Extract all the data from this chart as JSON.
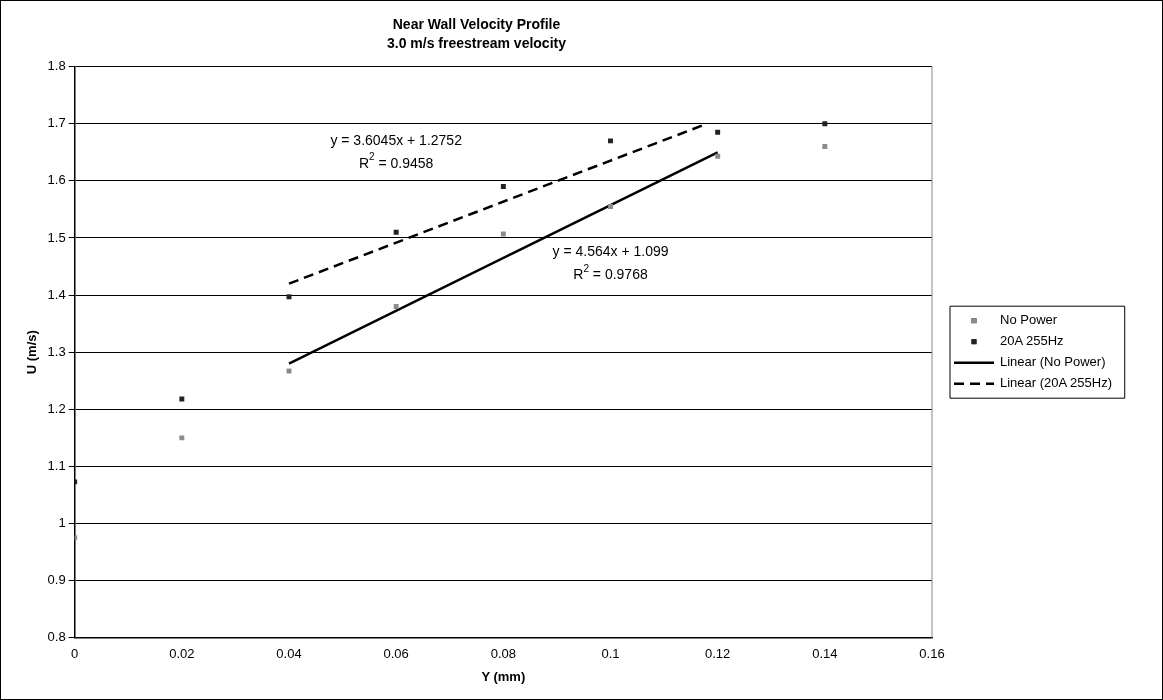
{
  "chart_data": {
    "type": "scatter",
    "title": "Near Wall Velocity Profile",
    "subtitle": "3.0 m/s freestream velocity",
    "xlabel": "Y (mm)",
    "ylabel": "U (m/s)",
    "x": [
      0,
      0.02,
      0.04,
      0.06,
      0.08,
      0.1,
      0.12,
      0.14
    ],
    "series": [
      {
        "name": "No Power",
        "color": "#8c8c8c",
        "marker": "square",
        "values": [
          0.975,
          1.15,
          1.267,
          1.38,
          1.507,
          1.555,
          1.643,
          1.66
        ]
      },
      {
        "name": "20A 255Hz",
        "color": "#222222",
        "marker": "square",
        "values": [
          1.073,
          1.218,
          1.397,
          1.51,
          1.59,
          1.67,
          1.685,
          1.7
        ]
      },
      {
        "name": "Linear (No Power)",
        "type": "line",
        "color": "#000000",
        "marker": "none",
        "line_style": "solid",
        "x": [
          0.04,
          0.12
        ],
        "values": [
          1.28,
          1.65
        ]
      },
      {
        "name": "Linear (20A 255Hz)",
        "type": "line",
        "color": "#000000",
        "marker": "none",
        "line_style": "dashed",
        "x": [
          0.04,
          0.118
        ],
        "values": [
          1.42,
          1.7
        ]
      }
    ],
    "xlim": [
      0,
      0.16
    ],
    "xticks": [
      0,
      0.02,
      0.04,
      0.06,
      0.08,
      0.1,
      0.12,
      0.14,
      0.16
    ],
    "ylim": [
      0.8,
      1.8
    ],
    "yticks": [
      0.8,
      0.9,
      1,
      1.1,
      1.2,
      1.3,
      1.4,
      1.5,
      1.6,
      1.7,
      1.8
    ],
    "grid": "y",
    "legend": "right",
    "annotations": [
      "y = 3.6045x + 1.2752",
      "R$^{2}$ = 0.9458",
      "y = 4.564x + 1.099",
      "R$^{2}$ = 0.9768"
    ]
  }
}
